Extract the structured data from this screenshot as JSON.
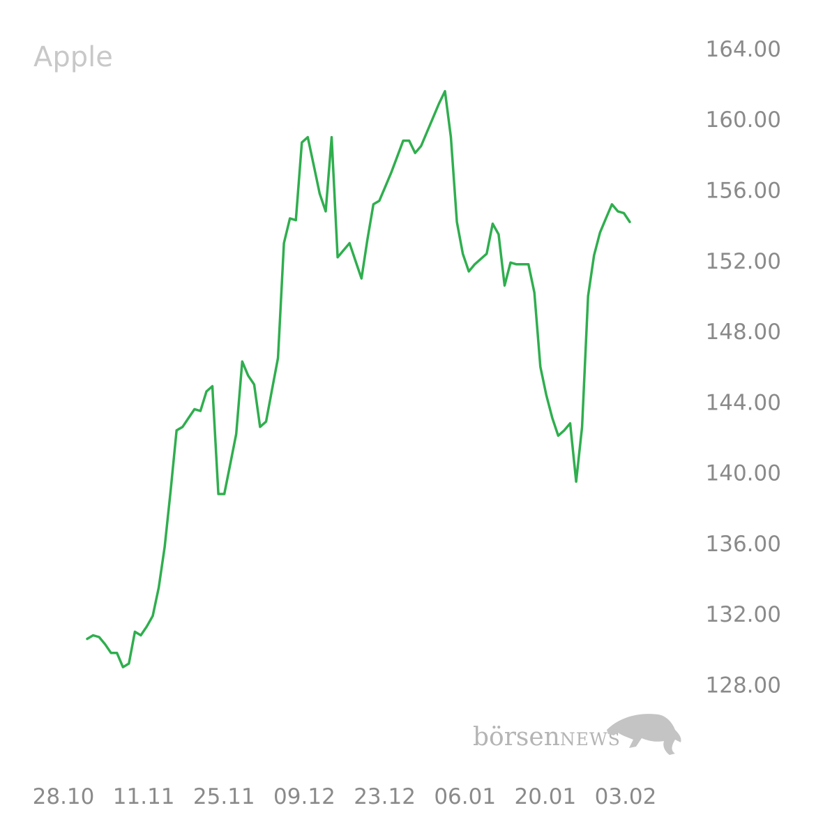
{
  "chart_data": {
    "type": "line",
    "title": "Apple",
    "xlabel": "",
    "ylabel": "",
    "ylim": [
      124.5,
      165.5
    ],
    "y_axis_position": "right",
    "grid": false,
    "legend": "none",
    "line_color": "#2fae4e",
    "yticks": [
      "164.00",
      "160.00",
      "156.00",
      "152.00",
      "148.00",
      "144.00",
      "140.00",
      "136.00",
      "132.00",
      "128.00"
    ],
    "xticks": [
      "28.10",
      "11.11",
      "25.11",
      "09.12",
      "23.12",
      "06.01",
      "20.01",
      "03.02"
    ],
    "series": [
      {
        "values": [
          130.6,
          130.8,
          130.7,
          130.3,
          129.8,
          129.8,
          129.0,
          129.2,
          131.0,
          130.8,
          131.3,
          131.9,
          133.5,
          135.8,
          139.0,
          142.4,
          142.6,
          143.1,
          143.6,
          143.5,
          144.6,
          144.9,
          138.8,
          138.8,
          140.5,
          142.2,
          146.3,
          145.5,
          145.0,
          142.6,
          142.9,
          144.7,
          146.5,
          153.0,
          154.4,
          154.3,
          158.7,
          159.0,
          157.4,
          155.8,
          154.8,
          159.0,
          152.2,
          152.6,
          153.0,
          152.0,
          151.0,
          153.2,
          155.2,
          155.4,
          156.2,
          157.0,
          157.9,
          158.8,
          158.8,
          158.1,
          158.5,
          159.3,
          160.1,
          160.9,
          161.6,
          159.0,
          154.2,
          152.4,
          151.4,
          151.8,
          152.1,
          152.4,
          154.1,
          153.5,
          150.6,
          151.9,
          151.8,
          151.8,
          151.8,
          150.2,
          146.0,
          144.4,
          143.1,
          142.1,
          142.4,
          142.8,
          139.5,
          142.6,
          150.0,
          152.3,
          153.6,
          154.4,
          155.2,
          154.8,
          154.7,
          154.2
        ]
      }
    ]
  },
  "watermark": {
    "brand": "börsen",
    "brand_suffix": "NEWS",
    "icon": "bull-icon"
  }
}
